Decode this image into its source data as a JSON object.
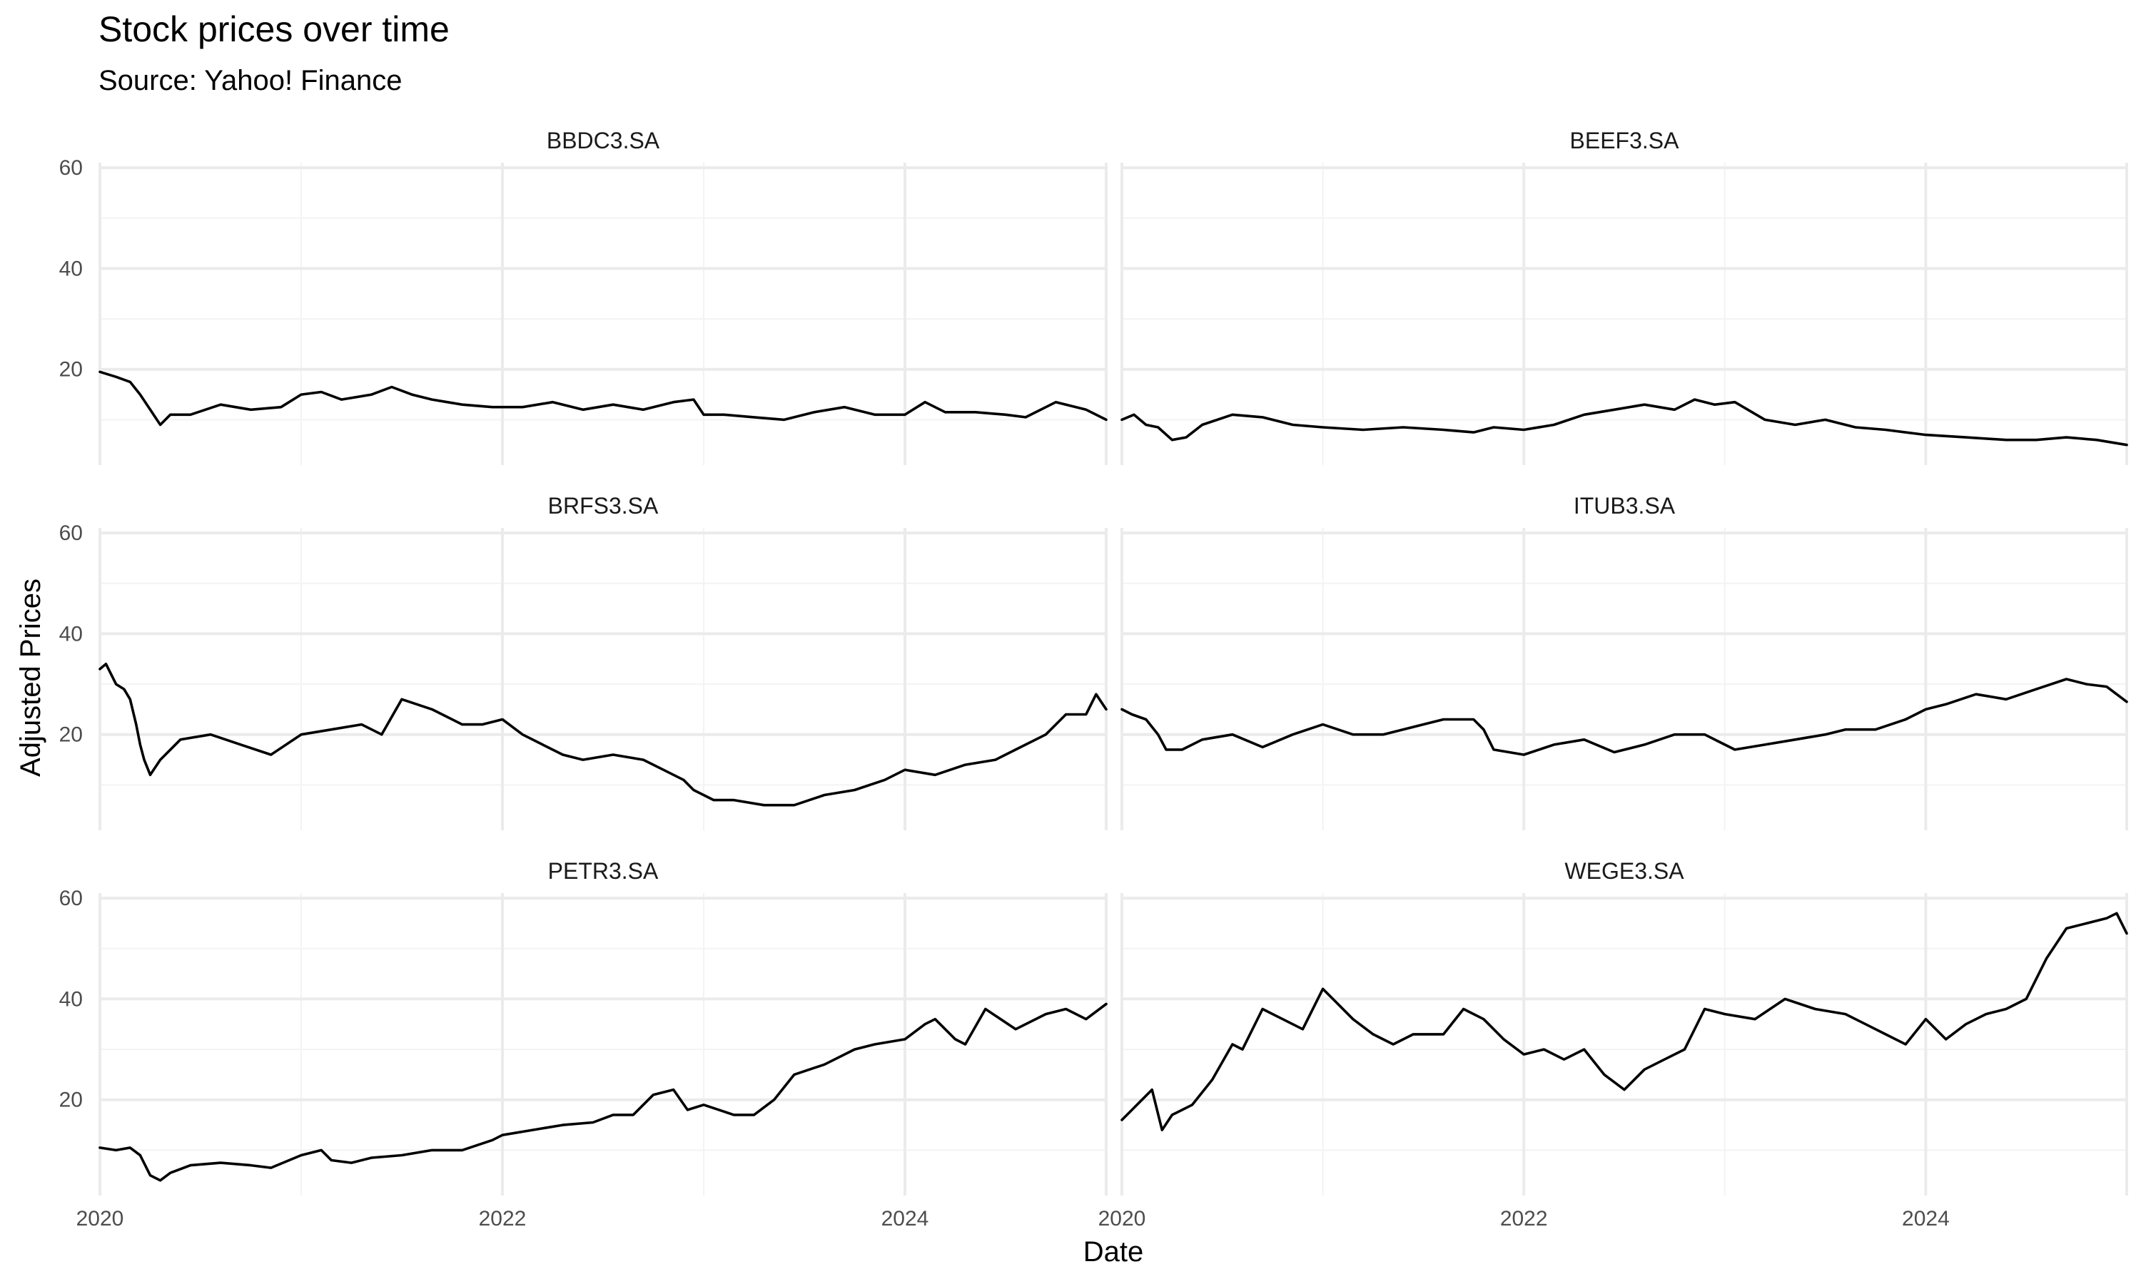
{
  "chart_data": {
    "type": "line",
    "title": "Stock prices over time",
    "subtitle": "Source: Yahoo! Finance",
    "xlabel": "Date",
    "ylabel": "Adjusted Prices",
    "xlim": [
      2020.0,
      2025.0
    ],
    "ylim": [
      1,
      61
    ],
    "x_ticks": [
      2020,
      2022,
      2024
    ],
    "x_tick_labels": [
      "2020",
      "2022",
      "2024"
    ],
    "y_ticks": [
      20,
      40,
      60
    ],
    "y_tick_labels": [
      "20",
      "40",
      "60"
    ],
    "grid": true,
    "facets": {
      "ncol": 2,
      "nrow": 3,
      "shared_y": true,
      "y_labels_on": "left column",
      "x_labels_on": "bottom row"
    },
    "panels": [
      {
        "name": "BBDC3.SA",
        "x": [
          2020.0,
          2020.08,
          2020.15,
          2020.2,
          2020.25,
          2020.3,
          2020.35,
          2020.45,
          2020.6,
          2020.75,
          2020.9,
          2021.0,
          2021.1,
          2021.2,
          2021.35,
          2021.45,
          2021.55,
          2021.65,
          2021.8,
          2021.95,
          2022.1,
          2022.25,
          2022.4,
          2022.55,
          2022.7,
          2022.85,
          2022.95,
          2023.0,
          2023.1,
          2023.25,
          2023.4,
          2023.55,
          2023.7,
          2023.85,
          2024.0,
          2024.1,
          2024.2,
          2024.35,
          2024.5,
          2024.6,
          2024.75,
          2024.9,
          2025.0
        ],
        "y": [
          19.5,
          18.5,
          17.5,
          15,
          12,
          9,
          11,
          11,
          13,
          12,
          12.5,
          15,
          15.5,
          14,
          15,
          16.5,
          15,
          14,
          13,
          12.5,
          12.5,
          13.5,
          12,
          13,
          12,
          13.5,
          14,
          11,
          11,
          10.5,
          10,
          11.5,
          12.5,
          11,
          11,
          13.5,
          11.5,
          11.5,
          11,
          10.5,
          13.5,
          12,
          10
        ]
      },
      {
        "name": "BEEF3.SA",
        "x": [
          2020.0,
          2020.06,
          2020.12,
          2020.18,
          2020.25,
          2020.32,
          2020.4,
          2020.55,
          2020.7,
          2020.85,
          2021.0,
          2021.2,
          2021.4,
          2021.6,
          2021.75,
          2021.85,
          2022.0,
          2022.15,
          2022.3,
          2022.45,
          2022.6,
          2022.75,
          2022.85,
          2022.95,
          2023.05,
          2023.2,
          2023.35,
          2023.5,
          2023.65,
          2023.8,
          2024.0,
          2024.2,
          2024.4,
          2024.55,
          2024.7,
          2024.85,
          2025.0
        ],
        "y": [
          10,
          11,
          9,
          8.5,
          6,
          6.5,
          9,
          11,
          10.5,
          9,
          8.5,
          8,
          8.5,
          8,
          7.5,
          8.5,
          8,
          9,
          11,
          12,
          13,
          12,
          14,
          13,
          13.5,
          10,
          9,
          10,
          8.5,
          8,
          7,
          6.5,
          6,
          6,
          6.5,
          6,
          5
        ]
      },
      {
        "name": "BRFS3.SA",
        "x": [
          2020.0,
          2020.03,
          2020.08,
          2020.12,
          2020.15,
          2020.18,
          2020.2,
          2020.22,
          2020.25,
          2020.3,
          2020.4,
          2020.55,
          2020.7,
          2020.85,
          2021.0,
          2021.15,
          2021.3,
          2021.4,
          2021.5,
          2021.65,
          2021.8,
          2021.9,
          2022.0,
          2022.1,
          2022.2,
          2022.3,
          2022.4,
          2022.55,
          2022.7,
          2022.8,
          2022.9,
          2022.95,
          2023.05,
          2023.15,
          2023.3,
          2023.45,
          2023.6,
          2023.75,
          2023.9,
          2024.0,
          2024.15,
          2024.3,
          2024.45,
          2024.55,
          2024.7,
          2024.8,
          2024.9,
          2024.95,
          2025.0
        ],
        "y": [
          33,
          34,
          30,
          29,
          27,
          22,
          18,
          15,
          12,
          15,
          19,
          20,
          18,
          16,
          20,
          21,
          22,
          20,
          27,
          25,
          22,
          22,
          23,
          20,
          18,
          16,
          15,
          16,
          15,
          13,
          11,
          9,
          7,
          7,
          6,
          6,
          8,
          9,
          11,
          13,
          12,
          14,
          15,
          17,
          20,
          24,
          24,
          28,
          25
        ]
      },
      {
        "name": "ITUB3.SA",
        "x": [
          2020.0,
          2020.05,
          2020.12,
          2020.18,
          2020.22,
          2020.3,
          2020.4,
          2020.55,
          2020.7,
          2020.85,
          2021.0,
          2021.15,
          2021.3,
          2021.45,
          2021.6,
          2021.75,
          2021.8,
          2021.85,
          2022.0,
          2022.15,
          2022.3,
          2022.45,
          2022.6,
          2022.75,
          2022.9,
          2023.05,
          2023.2,
          2023.35,
          2023.5,
          2023.6,
          2023.75,
          2023.9,
          2024.0,
          2024.1,
          2024.25,
          2024.4,
          2024.55,
          2024.7,
          2024.8,
          2024.9,
          2025.0
        ],
        "y": [
          25,
          24,
          23,
          20,
          17,
          17,
          19,
          20,
          17.5,
          20,
          22,
          20,
          20,
          21.5,
          23,
          23,
          21,
          17,
          16,
          18,
          19,
          16.5,
          18,
          20,
          20,
          17,
          18,
          19,
          20,
          21,
          21,
          23,
          25,
          26,
          28,
          27,
          29,
          31,
          30,
          29.5,
          26.5
        ]
      },
      {
        "name": "PETR3.SA",
        "x": [
          2020.0,
          2020.08,
          2020.15,
          2020.2,
          2020.25,
          2020.3,
          2020.35,
          2020.45,
          2020.6,
          2020.75,
          2020.85,
          2021.0,
          2021.1,
          2021.15,
          2021.25,
          2021.35,
          2021.5,
          2021.65,
          2021.8,
          2021.95,
          2022.0,
          2022.15,
          2022.3,
          2022.45,
          2022.55,
          2022.65,
          2022.75,
          2022.85,
          2022.92,
          2023.0,
          2023.15,
          2023.25,
          2023.35,
          2023.45,
          2023.6,
          2023.75,
          2023.85,
          2024.0,
          2024.1,
          2024.15,
          2024.25,
          2024.3,
          2024.4,
          2024.55,
          2024.7,
          2024.8,
          2024.9,
          2025.0
        ],
        "y": [
          10.5,
          10,
          10.5,
          9,
          5,
          4,
          5.5,
          7,
          7.5,
          7,
          6.5,
          9,
          10,
          8,
          7.5,
          8.5,
          9,
          10,
          10,
          12,
          13,
          14,
          15,
          15.5,
          17,
          17,
          21,
          22,
          18,
          19,
          17,
          17,
          20,
          25,
          27,
          30,
          31,
          32,
          35,
          36,
          32,
          31,
          38,
          34,
          37,
          38,
          36,
          39
        ]
      },
      {
        "name": "WEGE3.SA",
        "x": [
          2020.0,
          2020.05,
          2020.1,
          2020.15,
          2020.2,
          2020.25,
          2020.3,
          2020.35,
          2020.45,
          2020.55,
          2020.6,
          2020.7,
          2020.8,
          2020.9,
          2021.0,
          2021.05,
          2021.15,
          2021.25,
          2021.35,
          2021.45,
          2021.6,
          2021.7,
          2021.8,
          2021.9,
          2022.0,
          2022.1,
          2022.2,
          2022.3,
          2022.4,
          2022.5,
          2022.6,
          2022.7,
          2022.8,
          2022.9,
          2023.0,
          2023.15,
          2023.3,
          2023.45,
          2023.6,
          2023.7,
          2023.8,
          2023.9,
          2024.0,
          2024.1,
          2024.2,
          2024.3,
          2024.4,
          2024.5,
          2024.6,
          2024.7,
          2024.8,
          2024.9,
          2024.95,
          2025.0
        ],
        "y": [
          16,
          18,
          20,
          22,
          14,
          17,
          18,
          19,
          24,
          31,
          30,
          38,
          36,
          34,
          42,
          40,
          36,
          33,
          31,
          33,
          33,
          38,
          36,
          32,
          29,
          30,
          28,
          30,
          25,
          22,
          26,
          28,
          30,
          38,
          37,
          36,
          40,
          38,
          37,
          35,
          33,
          31,
          36,
          32,
          35,
          37,
          38,
          40,
          48,
          54,
          55,
          56,
          57,
          53
        ]
      }
    ]
  }
}
